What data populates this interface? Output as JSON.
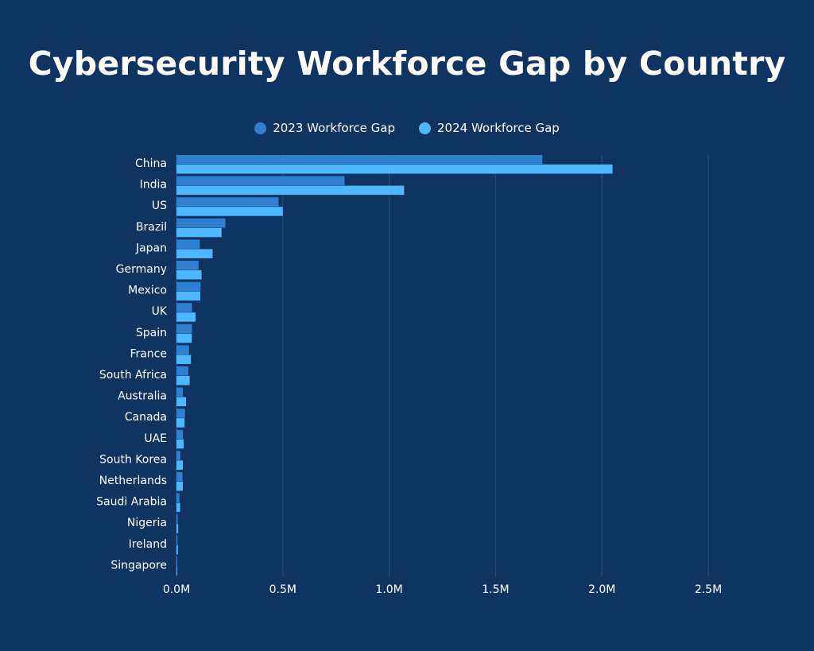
{
  "title": "Cybersecurity Workforce Gap by Country",
  "chart_data": {
    "type": "bar",
    "orientation": "horizontal",
    "title": "Cybersecurity Workforce Gap by Country",
    "xlabel": "",
    "ylabel": "",
    "xlim": [
      0,
      2500000
    ],
    "x_ticks": [
      0,
      500000,
      1000000,
      1500000,
      2000000,
      2500000
    ],
    "x_tick_labels": [
      "0.0M",
      "0.5M",
      "1.0M",
      "1.5M",
      "2.0M",
      "2.5M"
    ],
    "grid": "vertical",
    "legend_position": "top-center",
    "categories": [
      "China",
      "India",
      "US",
      "Brazil",
      "Japan",
      "Germany",
      "Mexico",
      "UK",
      "Spain",
      "France",
      "South Africa",
      "Australia",
      "Canada",
      "UAE",
      "South Korea",
      "Netherlands",
      "Saudi Arabia",
      "Nigeria",
      "Ireland",
      "Singapore"
    ],
    "series": [
      {
        "name": "2023 Workforce Gap",
        "color": "#2f7fd3",
        "values": [
          1720000,
          790000,
          480000,
          230000,
          110000,
          104000,
          113000,
          73000,
          73000,
          59000,
          56000,
          30000,
          40000,
          30000,
          18000,
          28000,
          14000,
          6000,
          5000,
          2000
        ]
      },
      {
        "name": "2024 Workforce Gap",
        "color": "#4db8ff",
        "values": [
          2050000,
          1070000,
          500000,
          212000,
          170000,
          118000,
          112000,
          90000,
          72000,
          68000,
          62000,
          45000,
          38000,
          34000,
          30000,
          30000,
          17000,
          8000,
          7000,
          4000
        ]
      }
    ]
  },
  "colors": {
    "background": "#0f3461",
    "gridline": "#2a4d78",
    "text": "#ffffff"
  }
}
